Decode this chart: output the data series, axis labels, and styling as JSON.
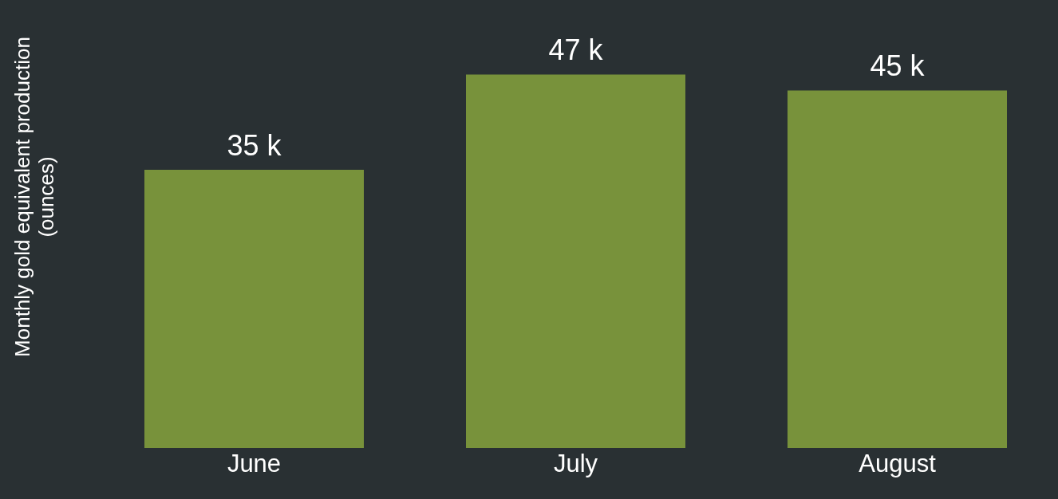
{
  "chart_data": {
    "type": "bar",
    "ylabel": "Monthly gold equivalent production (ounces)",
    "categories": [
      "June",
      "July",
      "August"
    ],
    "values": [
      35,
      47,
      45
    ],
    "value_labels": [
      "35 k",
      "47 k",
      "45 k"
    ],
    "color": "#78923b",
    "grid": false,
    "legend": false
  }
}
